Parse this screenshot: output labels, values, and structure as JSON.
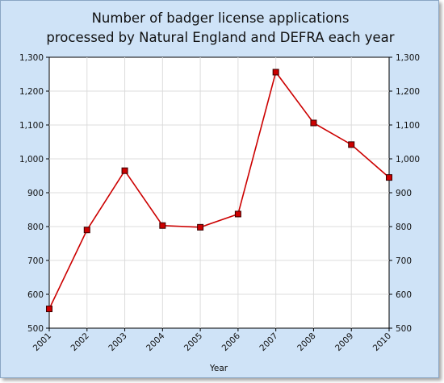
{
  "chart_data": {
    "type": "line",
    "title_lines": [
      "Number of badger license applications",
      "processed by Natural England and DEFRA each year"
    ],
    "xlabel": "Year",
    "ylabel": "",
    "categories": [
      "2001",
      "2002",
      "2003",
      "2004",
      "2005",
      "2006",
      "2007",
      "2008",
      "2009",
      "2010"
    ],
    "series": [
      {
        "values": [
          557,
          790,
          965,
          803,
          798,
          837,
          1256,
          1106,
          1042,
          945
        ],
        "color": "#cc0000"
      }
    ],
    "ylim": [
      500,
      1300
    ],
    "yticks": [
      500,
      600,
      700,
      800,
      900,
      1000,
      1100,
      1200,
      1300
    ],
    "ytick_labels": [
      "500",
      "600",
      "700",
      "800",
      "900",
      "1,000",
      "1,100",
      "1,200",
      "1,300"
    ],
    "grid": true,
    "y_axis_both_sides": true,
    "colors": {
      "background": "#cfe3f7",
      "plot_background": "#ffffff",
      "line": "#cc0000",
      "marker": "#cc0000"
    }
  }
}
